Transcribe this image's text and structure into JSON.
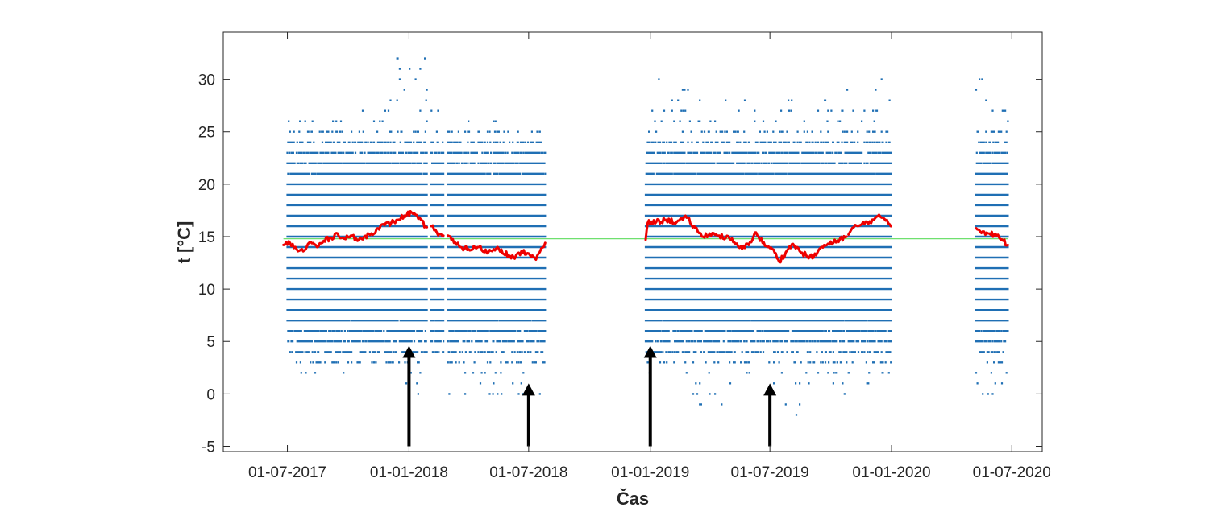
{
  "chart_data": {
    "type": "scatter",
    "title": "",
    "xlabel": "Čas",
    "ylabel": "t [°C]",
    "xlim": [
      "2017-03-26",
      "2020-08-16"
    ],
    "ylim": [
      -5.5,
      34.5
    ],
    "x_ticks": [
      {
        "date": "2017-07-01",
        "label": "01-07-2017"
      },
      {
        "date": "2018-01-01",
        "label": "01-01-2018"
      },
      {
        "date": "2018-07-01",
        "label": "01-07-2018"
      },
      {
        "date": "2019-01-01",
        "label": "01-01-2019"
      },
      {
        "date": "2019-07-01",
        "label": "01-07-2019"
      },
      {
        "date": "2020-01-01",
        "label": "01-01-2020"
      },
      {
        "date": "2020-07-01",
        "label": "01-07-2020"
      }
    ],
    "y_ticks": [
      -5,
      0,
      5,
      10,
      15,
      20,
      25,
      30
    ],
    "grid": false,
    "colors": {
      "points": "#1f6fb4",
      "moving_average": "#ee0000",
      "overall_mean": "#6fe06f",
      "arrows": "#000000",
      "axes": "#262626"
    },
    "series": [
      {
        "role": "measurements",
        "segments": [
          {
            "start": "2017-07-01",
            "end": "2017-10-01",
            "min": 2,
            "max": 26
          },
          {
            "start": "2017-10-01",
            "end": "2017-12-01",
            "min": 1,
            "max": 28
          },
          {
            "start": "2017-12-01",
            "end": "2018-01-28",
            "min": 0,
            "max": 32
          },
          {
            "start": "2018-02-03",
            "end": "2018-02-22",
            "min": 4,
            "max": 27
          },
          {
            "start": "2018-03-01",
            "end": "2018-05-15",
            "min": 0,
            "max": 27
          },
          {
            "start": "2018-05-15",
            "end": "2018-07-26",
            "min": 0,
            "max": 25
          },
          {
            "start": "2018-12-25",
            "end": "2019-03-01",
            "min": 2,
            "max": 30
          },
          {
            "start": "2019-03-01",
            "end": "2019-05-15",
            "min": -1,
            "max": 28
          },
          {
            "start": "2019-05-15",
            "end": "2019-08-20",
            "min": -2,
            "max": 29
          },
          {
            "start": "2019-08-20",
            "end": "2019-10-25",
            "min": 0,
            "max": 28
          },
          {
            "start": "2019-10-25",
            "end": "2019-12-31",
            "min": 1,
            "max": 30
          },
          {
            "start": "2020-05-08",
            "end": "2020-06-25",
            "min": 0,
            "max": 30
          }
        ]
      },
      {
        "role": "moving_average",
        "points": [
          [
            "2017-06-25",
            14.2
          ],
          [
            "2017-07-05",
            14.4
          ],
          [
            "2017-07-15",
            13.8
          ],
          [
            "2017-07-25",
            13.6
          ],
          [
            "2017-08-05",
            14.5
          ],
          [
            "2017-08-15",
            14.0
          ],
          [
            "2017-08-25",
            14.6
          ],
          [
            "2017-09-05",
            14.9
          ],
          [
            "2017-09-15",
            15.3
          ],
          [
            "2017-09-25",
            14.8
          ],
          [
            "2017-10-05",
            15.1
          ],
          [
            "2017-10-15",
            14.6
          ],
          [
            "2017-10-25",
            15.0
          ],
          [
            "2017-11-05",
            15.3
          ],
          [
            "2017-11-15",
            15.8
          ],
          [
            "2017-11-25",
            16.1
          ],
          [
            "2017-12-05",
            16.3
          ],
          [
            "2017-12-15",
            16.6
          ],
          [
            "2017-12-25",
            17.0
          ],
          [
            "2018-01-05",
            17.3
          ],
          [
            "2018-01-15",
            16.7
          ],
          [
            "2018-01-28",
            15.9
          ],
          null,
          [
            "2018-02-04",
            16.0
          ],
          [
            "2018-02-12",
            15.4
          ],
          [
            "2018-02-22",
            15.1
          ],
          null,
          [
            "2018-03-01",
            15.1
          ],
          [
            "2018-03-10",
            14.4
          ],
          [
            "2018-03-20",
            14.0
          ],
          [
            "2018-04-01",
            13.8
          ],
          [
            "2018-04-15",
            14.0
          ],
          [
            "2018-05-01",
            13.5
          ],
          [
            "2018-05-15",
            14.0
          ],
          [
            "2018-06-01",
            13.2
          ],
          [
            "2018-06-10",
            12.9
          ],
          [
            "2018-06-20",
            13.6
          ],
          [
            "2018-07-01",
            13.4
          ],
          [
            "2018-07-12",
            12.8
          ],
          [
            "2018-07-26",
            14.4
          ],
          null,
          [
            "2018-12-25",
            14.7
          ],
          [
            "2018-12-28",
            16.3
          ],
          [
            "2019-01-10",
            16.4
          ],
          [
            "2019-01-25",
            16.6
          ],
          [
            "2019-02-10",
            16.4
          ],
          [
            "2019-02-25",
            16.8
          ],
          [
            "2019-03-10",
            15.8
          ],
          [
            "2019-03-20",
            15.0
          ],
          [
            "2019-04-01",
            15.3
          ],
          [
            "2019-04-15",
            15.1
          ],
          [
            "2019-05-01",
            14.8
          ],
          [
            "2019-05-10",
            14.3
          ],
          [
            "2019-05-20",
            13.8
          ],
          [
            "2019-06-01",
            14.5
          ],
          [
            "2019-06-10",
            15.4
          ],
          [
            "2019-06-20",
            14.4
          ],
          [
            "2019-07-01",
            13.9
          ],
          [
            "2019-07-10",
            13.4
          ],
          [
            "2019-07-15",
            12.6
          ],
          [
            "2019-07-25",
            13.5
          ],
          [
            "2019-08-05",
            14.3
          ],
          [
            "2019-08-15",
            13.6
          ],
          [
            "2019-08-25",
            13.2
          ],
          [
            "2019-09-05",
            13.0
          ],
          [
            "2019-09-15",
            13.9
          ],
          [
            "2019-09-25",
            14.2
          ],
          [
            "2019-10-05",
            14.4
          ],
          [
            "2019-10-15",
            14.8
          ],
          [
            "2019-10-25",
            15.0
          ],
          null,
          [
            "2019-10-28",
            15.2
          ],
          [
            "2019-11-05",
            15.9
          ],
          [
            "2019-11-15",
            16.1
          ],
          [
            "2019-11-25",
            16.4
          ],
          [
            "2019-12-05",
            16.6
          ],
          [
            "2019-12-15",
            16.9
          ],
          [
            "2019-12-25",
            16.6
          ],
          [
            "2019-12-31",
            16.0
          ],
          null,
          [
            "2020-05-08",
            15.8
          ],
          [
            "2020-05-18",
            15.5
          ],
          [
            "2020-05-28",
            15.3
          ],
          [
            "2020-06-08",
            15.1
          ],
          [
            "2020-06-18",
            14.6
          ],
          [
            "2020-06-25",
            14.2
          ]
        ]
      },
      {
        "role": "overall_mean",
        "value": 14.8,
        "start": "2017-06-25",
        "end": "2020-06-25"
      }
    ],
    "annotations": [
      {
        "type": "arrow",
        "x": "2018-01-01",
        "y_from": -5,
        "y_to": 4.6
      },
      {
        "type": "arrow",
        "x": "2018-07-01",
        "y_from": -5,
        "y_to": 1.0
      },
      {
        "type": "arrow",
        "x": "2019-01-01",
        "y_from": -5,
        "y_to": 4.6
      },
      {
        "type": "arrow",
        "x": "2019-07-01",
        "y_from": -5,
        "y_to": 1.0
      }
    ]
  }
}
